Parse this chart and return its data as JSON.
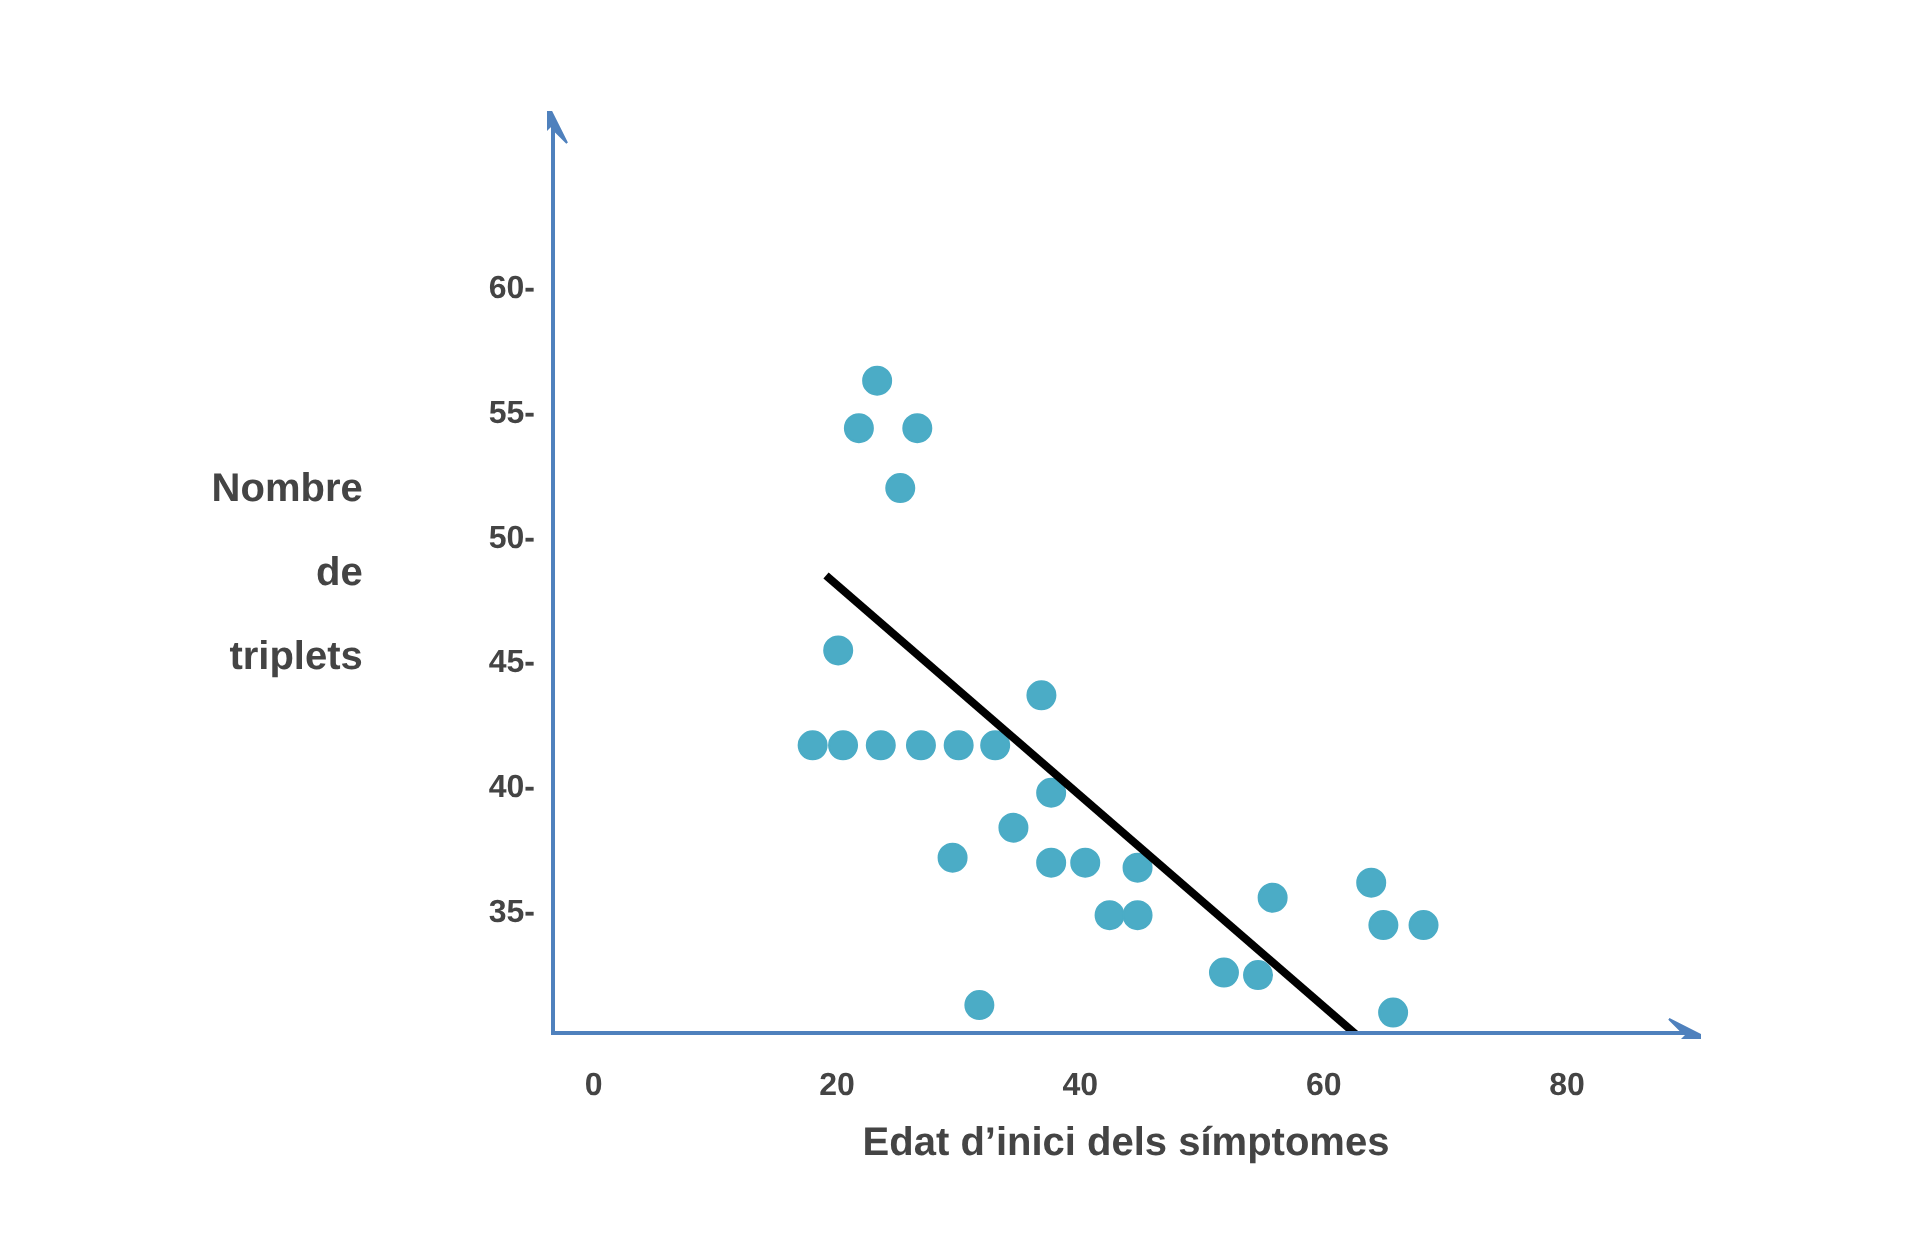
{
  "chart_data": {
    "type": "scatter",
    "xlabel": "Edat d’inici dels símptomes",
    "ylabel": "Nombre de triplets",
    "xlim": [
      -3.5,
      91
    ],
    "ylim": [
      30,
      67
    ],
    "xticks": [
      0,
      20,
      40,
      60,
      80
    ],
    "yticks": [
      {
        "value": 35,
        "label": "35-"
      },
      {
        "value": 40,
        "label": "40-"
      },
      {
        "value": 45,
        "label": "45-"
      },
      {
        "value": 50,
        "label": "50-"
      },
      {
        "value": 55,
        "label": "55-"
      },
      {
        "value": 60,
        "label": "60-"
      }
    ],
    "grid": false,
    "series": [
      {
        "marker": "circle",
        "color": "#4bacc6",
        "x": [
          23.3,
          21.8,
          26.6,
          25.2,
          20.1,
          18.0,
          20.5,
          23.6,
          26.9,
          30.0,
          33.0,
          36.8,
          37.6,
          34.5,
          29.5,
          37.6,
          40.4,
          44.7,
          42.4,
          44.7,
          31.7,
          51.8,
          54.6,
          55.8,
          63.9,
          64.9,
          68.2,
          65.7
        ],
        "values": [
          56.2,
          54.3,
          54.3,
          51.9,
          45.4,
          41.6,
          41.6,
          41.6,
          41.6,
          41.6,
          41.6,
          43.6,
          39.7,
          38.3,
          37.1,
          36.9,
          36.9,
          36.7,
          34.8,
          34.8,
          31.2,
          32.5,
          32.4,
          35.5,
          36.1,
          34.4,
          34.4,
          30.9
        ]
      },
      {
        "type": "line",
        "color": "#000000",
        "x": [
          19.1,
          62.7
        ],
        "values": [
          48.4,
          30.0
        ]
      }
    ]
  }
}
